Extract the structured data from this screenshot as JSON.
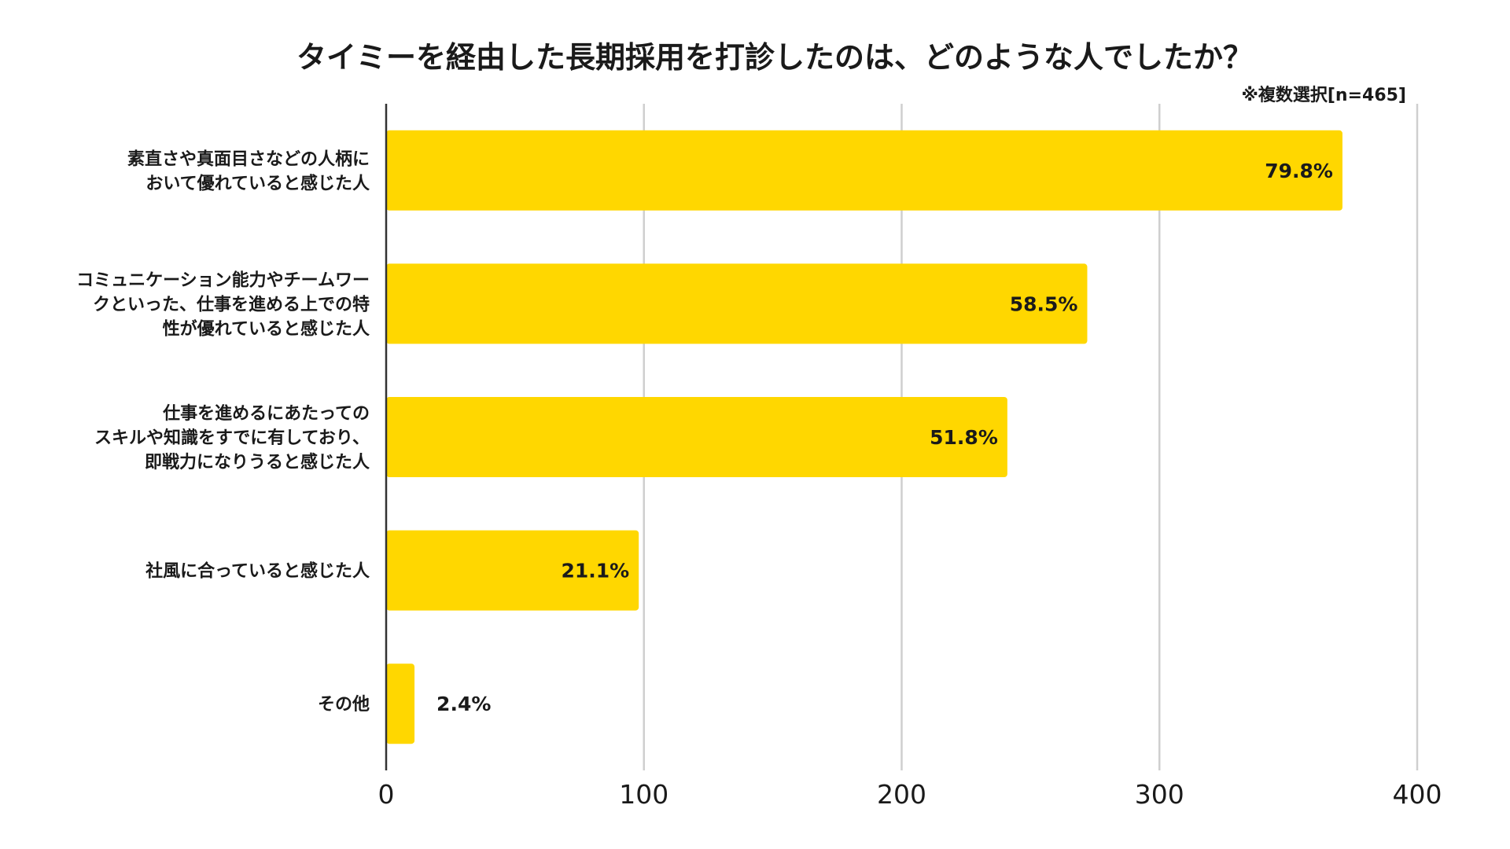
{
  "chart_data": {
    "type": "bar",
    "orientation": "horizontal",
    "title": "タイミーを経由した長期採用を打診したのは、どのような人でしたか？",
    "note": "※複数選択[n=465]",
    "categories": [
      [
        "素直さや真面目さなどの人柄に",
        "おいて優れていると感じた人"
      ],
      [
        "コミュニケーション能力やチームワー",
        "クといった、仕事を進める上での特",
        "性が優れていると感じた人"
      ],
      [
        "仕事を進めるにあたっての",
        "スキルや知識をすでに有しており、",
        "即戦力になりうると感じた人"
      ],
      [
        "社風に合っていると感じた人"
      ],
      [
        "その他"
      ]
    ],
    "values": [
      371,
      272,
      241,
      98,
      11
    ],
    "value_labels": [
      "79.8%",
      "58.5%",
      "51.8%",
      "21.1%",
      "2.4%"
    ],
    "xlim": [
      0,
      400
    ],
    "xticks": [
      "0",
      "100",
      "200",
      "300",
      "400"
    ],
    "grid": true,
    "bar_color": "#FFD700"
  }
}
